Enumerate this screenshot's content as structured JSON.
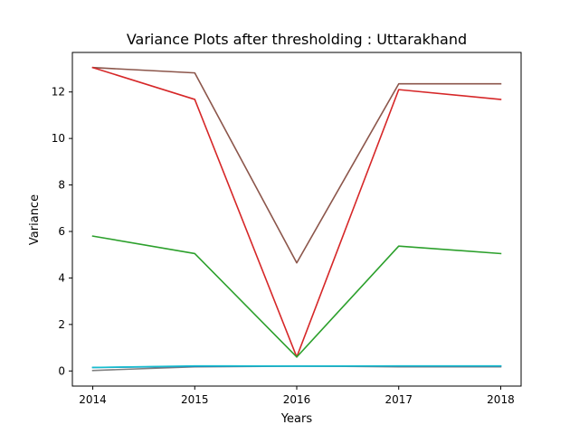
{
  "chart_data": {
    "type": "line",
    "title": "Variance Plots after thresholding : Uttarakhand",
    "xlabel": "Years",
    "ylabel": "Variance",
    "x": [
      "2014",
      "2015",
      "2016",
      "2017",
      "2018"
    ],
    "xlim": [
      2013.8,
      2018.2
    ],
    "ylim": [
      -0.65,
      13.7
    ],
    "yticks": [
      0,
      2,
      4,
      6,
      8,
      10,
      12
    ],
    "grid": false,
    "legend": false,
    "series": [
      {
        "color": "#8c564b",
        "values": [
          13.05,
          12.82,
          4.65,
          12.35,
          12.35
        ]
      },
      {
        "color": "#d62728",
        "values": [
          13.05,
          11.68,
          0.6,
          12.1,
          11.68
        ]
      },
      {
        "color": "#2ca02c",
        "values": [
          5.8,
          5.05,
          0.6,
          5.37,
          5.05
        ]
      },
      {
        "color": "#7f7f7f",
        "values": [
          0.02,
          0.18,
          0.21,
          0.18,
          0.18
        ]
      },
      {
        "color": "#1f77b4",
        "values": [
          0.15,
          0.2,
          0.21,
          0.21,
          0.21
        ]
      },
      {
        "color": "#17becf",
        "values": [
          0.15,
          0.22,
          0.21,
          0.22,
          0.22
        ]
      }
    ]
  }
}
